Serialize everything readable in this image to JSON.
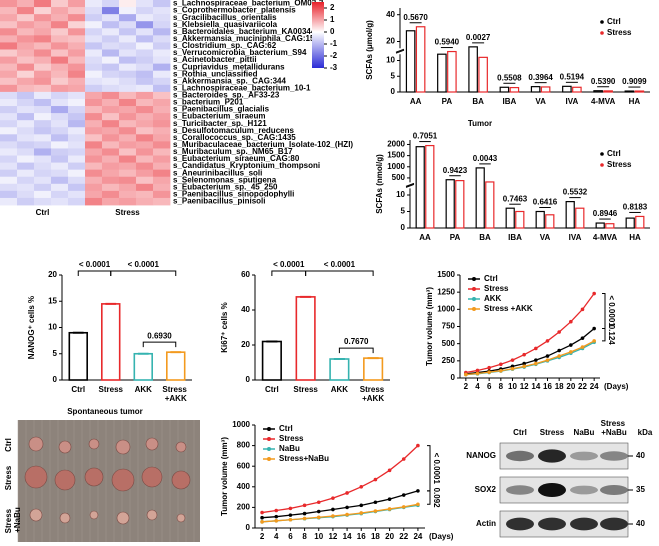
{
  "chart_data": [
    {
      "type": "heatmap",
      "groups": [
        "Ctrl",
        "Stress"
      ],
      "clim": [
        -3,
        2.5
      ],
      "colorbar_ticks": [
        2,
        1,
        0,
        -1,
        -2,
        -3
      ],
      "colors": [
        "#2b2bd6",
        "#ffffff",
        "#e8212b"
      ],
      "label_color": "#000000",
      "rows": [
        {
          "name": "s_Lachnospiraceae_bacterium_OM02-3",
          "values": [
            1.2,
            0.9,
            1.5,
            0.6,
            1.1,
            -0.3,
            -0.6,
            0.2,
            -0.4,
            -0.8
          ]
        },
        {
          "name": "s_Coprothermobacter_platensis",
          "values": [
            0.8,
            1.4,
            0.5,
            1.0,
            0.7,
            -0.5,
            -1.8,
            -0.2,
            -0.6,
            -0.4
          ]
        },
        {
          "name": "s_Gracilibacillus_orientalis",
          "values": [
            1.0,
            0.6,
            1.2,
            0.9,
            1.3,
            -0.7,
            -0.4,
            -1.2,
            -0.3,
            -0.5
          ]
        },
        {
          "name": "s_Klebsiella_quasivariicola",
          "values": [
            0.7,
            1.1,
            0.9,
            1.4,
            0.5,
            -0.2,
            -0.9,
            -0.5,
            -1.5,
            -0.6
          ]
        },
        {
          "name": "s_Bacteroidales_bacterium_KA00344",
          "values": [
            1.3,
            0.8,
            1.0,
            0.6,
            1.2,
            -0.6,
            -0.3,
            -0.8,
            -0.4,
            -1.0
          ]
        },
        {
          "name": "s_Akkermansia_muciniphila_CAG:154",
          "values": [
            0.9,
            1.2,
            1.4,
            0.8,
            0.7,
            -0.4,
            -0.7,
            -0.3,
            -0.9,
            -0.5
          ]
        },
        {
          "name": "s_Clostridium_sp._CAG:62",
          "color": "#e02020",
          "values": [
            1.5,
            1.0,
            0.8,
            1.2,
            0.9,
            -0.8,
            -0.5,
            -0.6,
            -0.2,
            -0.7
          ]
        },
        {
          "name": "s_Verrucomicrobia_bacterium_S94",
          "values": [
            0.6,
            0.9,
            1.3,
            0.7,
            1.1,
            -0.3,
            -1.0,
            -0.4,
            -0.6,
            -0.3
          ]
        },
        {
          "name": "s_Acinetobacter_pittii",
          "values": [
            1.1,
            0.7,
            0.9,
            1.5,
            0.8,
            -0.5,
            -0.2,
            -0.9,
            -0.7,
            -0.4
          ]
        },
        {
          "name": "s_Cupriavidus_metallidurans",
          "values": [
            0.8,
            1.3,
            0.6,
            0.9,
            1.2,
            -0.6,
            -0.8,
            -0.3,
            -0.5,
            -1.1
          ]
        },
        {
          "name": "s_Rothia_unclassified",
          "values": [
            1.0,
            0.5,
            1.1,
            0.8,
            1.4,
            -0.2,
            -0.6,
            -0.7,
            -0.9,
            -0.3
          ]
        },
        {
          "name": "s_Akkermansia_sp._CAG:344",
          "values": [
            0.7,
            1.0,
            1.2,
            0.6,
            0.9,
            -0.4,
            -0.3,
            -0.5,
            -0.8,
            -0.6
          ]
        },
        {
          "name": "s_Lachnospiraceae_bacterium_10-1",
          "color": "#e02020",
          "values": [
            1.2,
            0.8,
            0.7,
            1.1,
            1.0,
            -0.7,
            -0.5,
            -0.4,
            -0.3,
            -0.9
          ]
        },
        {
          "name": "s_Bacteroides_sp._AF33-23",
          "values": [
            -0.5,
            -0.8,
            -0.3,
            -0.6,
            -0.4,
            1.0,
            1.3,
            0.8,
            1.1,
            0.7
          ]
        },
        {
          "name": "s_bacterium_P201",
          "values": [
            -0.3,
            -0.6,
            -0.9,
            -0.4,
            -0.2,
            1.2,
            0.9,
            1.4,
            0.8,
            1.0
          ]
        },
        {
          "name": "s_Paenibacillus_glacialis",
          "values": [
            -0.7,
            -0.4,
            -0.5,
            -1.2,
            -0.6,
            0.8,
            1.1,
            1.0,
            1.3,
            0.9
          ]
        },
        {
          "name": "s_Eubacterium_siraeum",
          "values": [
            -0.4,
            -0.9,
            -0.2,
            -0.5,
            -0.8,
            1.3,
            0.7,
            1.2,
            0.9,
            1.1
          ]
        },
        {
          "name": "s_Turicibacter_sp._H121",
          "values": [
            -0.6,
            -0.3,
            -0.7,
            -0.4,
            -1.0,
            0.9,
            1.4,
            0.8,
            1.0,
            1.2
          ]
        },
        {
          "name": "s_Desulfotomaculum_reducens",
          "values": [
            -0.2,
            -0.5,
            -0.8,
            -0.6,
            -0.3,
            1.1,
            1.0,
            1.3,
            0.7,
            0.9
          ]
        },
        {
          "name": "s_Corallococcus_sp._CAG:1435",
          "values": [
            -0.8,
            -0.4,
            -0.3,
            -0.9,
            -0.5,
            0.7,
            1.2,
            0.9,
            1.4,
            1.0
          ]
        },
        {
          "name": "s_Muribaculaceae_bacterium_Isolate-102_(HZI)",
          "color": "#e02020",
          "values": [
            -0.5,
            -0.7,
            -0.6,
            -0.2,
            -0.4,
            1.4,
            0.8,
            1.1,
            1.0,
            1.3
          ]
        },
        {
          "name": "s_Muribaculum_sp._NM65_B17",
          "color": "#e02020",
          "values": [
            -0.3,
            -0.5,
            -1.1,
            -0.7,
            -0.6,
            1.0,
            1.3,
            0.7,
            1.2,
            0.8
          ]
        },
        {
          "name": "s_Eubacterium_siraeum_CAG:80",
          "values": [
            -0.6,
            -0.2,
            -0.4,
            -0.8,
            -0.3,
            1.2,
            0.9,
            1.4,
            0.8,
            1.1
          ]
        },
        {
          "name": "s_Candidatus_Kryptonium_thompsoni",
          "values": [
            -0.4,
            -0.8,
            -0.5,
            -0.3,
            -0.7,
            0.8,
            1.1,
            1.0,
            1.3,
            0.9
          ]
        },
        {
          "name": "s_Aneurinibacillus_soli",
          "values": [
            -0.7,
            -0.3,
            -0.6,
            -0.5,
            -0.2,
            1.3,
            1.0,
            0.8,
            1.1,
            1.4
          ]
        },
        {
          "name": "s_Selenomonas_sputigena",
          "values": [
            -0.2,
            -0.6,
            -0.4,
            -0.9,
            -0.5,
            0.9,
            1.2,
            1.3,
            0.7,
            1.0
          ]
        },
        {
          "name": "s_Eubacterium_sp._45_250",
          "values": [
            -0.5,
            -0.4,
            -0.7,
            -0.3,
            -0.8,
            1.1,
            0.8,
            1.0,
            1.4,
            0.9
          ]
        },
        {
          "name": "s_Paenibacillus_sinopodophylli",
          "values": [
            -0.8,
            -0.5,
            -0.2,
            -0.6,
            -0.4,
            1.0,
            1.3,
            0.9,
            0.8,
            1.2
          ]
        },
        {
          "name": "s_Paenibacillus_pinisoli",
          "values": [
            -0.3,
            -0.7,
            -0.5,
            -0.4,
            -0.6,
            1.4,
            1.0,
            1.1,
            0.9,
            0.8
          ]
        }
      ]
    },
    {
      "type": "bar",
      "y_label": "SCFAs (μmol/g)",
      "categories": [
        "AA",
        "PA",
        "BA",
        "IBA",
        "VA",
        "IVA",
        "4-MVA",
        "HA"
      ],
      "series": [
        {
          "name": "Ctrl",
          "color": "#000000",
          "values": [
            28,
            12,
            16,
            1.5,
            1.7,
            1.8,
            0.4,
            0.3
          ]
        },
        {
          "name": "Stress",
          "color": "#e8292b",
          "values": [
            31,
            12.5,
            11,
            1.4,
            1.6,
            1.5,
            0.35,
            0.3
          ]
        }
      ],
      "ylim": [
        0,
        45
      ],
      "y_break": [
        12,
        15
      ],
      "yticks": [
        0,
        5,
        10,
        20,
        40
      ],
      "p_labels": [
        "0.5670",
        "0.5940",
        "0.0027",
        "0.5508",
        "0.3964",
        "0.5194",
        "0.5390",
        "0.9099"
      ]
    },
    {
      "type": "bar",
      "title": "Tumor",
      "y_label": "SCFAs (nmol/g)",
      "categories": [
        "AA",
        "PA",
        "BA",
        "IBA",
        "VA",
        "IVA",
        "4-MVA",
        "HA"
      ],
      "series": [
        {
          "name": "Ctrl",
          "color": "#000000",
          "values": [
            1900,
            420,
            950,
            6,
            5,
            8,
            1.5,
            3
          ]
        },
        {
          "name": "Stress",
          "color": "#e8292b",
          "values": [
            1950,
            380,
            320,
            5,
            4,
            6,
            1.3,
            3.5
          ]
        }
      ],
      "ylim": [
        0,
        2200
      ],
      "y_break": [
        12,
        300
      ],
      "yticks": [
        0,
        5,
        10,
        500,
        1000,
        1500,
        2000
      ],
      "p_labels": [
        "0.7051",
        "0.9423",
        "0.0043",
        "0.7463",
        "0.6416",
        "0.5532",
        "0.8946",
        "0.8183"
      ]
    },
    {
      "type": "bar",
      "y_label": "NANOG⁺ cells %",
      "categories": [
        "Ctrl",
        "Stress",
        "AKK",
        "Stress +AKK"
      ],
      "values": [
        9,
        14.5,
        5,
        5.3
      ],
      "colors": [
        "#000000",
        "#e8292b",
        "#35b3b0",
        "#f39a1e"
      ],
      "ylim": [
        0,
        20
      ],
      "yticks": [
        0,
        5,
        10,
        15,
        20
      ],
      "annotations": [
        "< 0.0001",
        "< 0.0001",
        "0.6930"
      ]
    },
    {
      "type": "bar",
      "y_label": "Ki67⁺ cells %",
      "categories": [
        "Ctrl",
        "Stress",
        "AKK",
        "Stress +AKK"
      ],
      "values": [
        22,
        47.5,
        12,
        12.5
      ],
      "colors": [
        "#000000",
        "#e8292b",
        "#35b3b0",
        "#f39a1e"
      ],
      "ylim": [
        0,
        60
      ],
      "yticks": [
        0,
        20,
        40,
        60
      ],
      "annotations": [
        "< 0.0001",
        "< 0.0001",
        "0.7670"
      ]
    },
    {
      "type": "line",
      "y_label": "Tumor volume (mm³)",
      "x_label": "(Days)",
      "x": [
        2,
        4,
        6,
        8,
        10,
        12,
        14,
        16,
        18,
        20,
        22,
        24
      ],
      "xlim": [
        1,
        25
      ],
      "xticks": [
        2,
        4,
        6,
        8,
        10,
        12,
        14,
        16,
        18,
        20,
        22,
        24
      ],
      "ylim": [
        0,
        1500
      ],
      "yticks": [
        0,
        250,
        500,
        750,
        1000,
        1250,
        1500
      ],
      "series": [
        {
          "name": "Ctrl",
          "color": "#000000",
          "values": [
            60,
            80,
            100,
            130,
            170,
            210,
            260,
            320,
            400,
            480,
            580,
            720
          ]
        },
        {
          "name": "Stress",
          "color": "#e8292b",
          "values": [
            80,
            110,
            150,
            200,
            260,
            340,
            430,
            540,
            670,
            820,
            1000,
            1230
          ]
        },
        {
          "name": "AKK",
          "color": "#35b3b0",
          "values": [
            50,
            60,
            80,
            100,
            130,
            160,
            200,
            250,
            300,
            360,
            430,
            520
          ]
        },
        {
          "name": "Stress +AKK",
          "color": "#f39a1e",
          "values": [
            50,
            65,
            85,
            105,
            135,
            170,
            210,
            260,
            320,
            380,
            450,
            540
          ]
        }
      ],
      "annotations": [
        "< 0.0001",
        "0.124"
      ]
    },
    {
      "type": "line",
      "y_label": "Tumor volume (mm³)",
      "x_label": "(Days)",
      "x": [
        2,
        4,
        6,
        8,
        10,
        12,
        14,
        16,
        18,
        20,
        22,
        24
      ],
      "xlim": [
        1,
        25
      ],
      "xticks": [
        2,
        4,
        6,
        8,
        10,
        12,
        14,
        16,
        18,
        20,
        22,
        24
      ],
      "ylim": [
        0,
        1000
      ],
      "yticks": [
        0,
        200,
        400,
        600,
        800,
        1000
      ],
      "series": [
        {
          "name": "Ctrl",
          "color": "#000000",
          "values": [
            100,
            110,
            125,
            140,
            160,
            180,
            200,
            220,
            250,
            280,
            320,
            360
          ]
        },
        {
          "name": "Stress",
          "color": "#e8292b",
          "values": [
            150,
            170,
            190,
            220,
            250,
            290,
            340,
            400,
            470,
            560,
            670,
            800
          ]
        },
        {
          "name": "NaBu",
          "color": "#35b3b0",
          "values": [
            60,
            70,
            80,
            90,
            100,
            110,
            125,
            140,
            160,
            180,
            200,
            220
          ]
        },
        {
          "name": "Stress+NaBu",
          "color": "#f39a1e",
          "values": [
            60,
            70,
            80,
            92,
            104,
            116,
            130,
            146,
            165,
            185,
            205,
            230
          ]
        }
      ],
      "annotations": [
        "< 0.0001",
        "0.092"
      ]
    }
  ],
  "photo": {
    "title": "Spontaneous tumor",
    "row_labels": [
      "Ctrl",
      "Stress",
      "Stress +NaBu"
    ]
  },
  "blot": {
    "lanes": [
      "Ctrl",
      "Stress",
      "NaBu",
      "Stress +NaBu"
    ],
    "unit": "kDa",
    "rows": [
      {
        "name": "NANOG",
        "kda": 40
      },
      {
        "name": "SOX2",
        "kda": 35
      },
      {
        "name": "Actin",
        "kda": 40
      }
    ]
  }
}
